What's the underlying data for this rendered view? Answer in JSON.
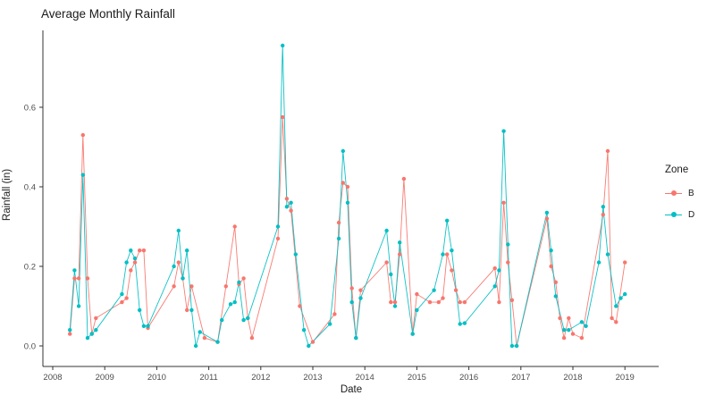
{
  "title": "Average Monthly Rainfall",
  "legend": {
    "title": "Zone",
    "entries": [
      {
        "label": "B",
        "color": "#F8766D"
      },
      {
        "label": "D",
        "color": "#00BFC4"
      }
    ]
  },
  "chart_data": {
    "type": "line",
    "title": "Average Monthly Rainfall",
    "xlabel": "Date",
    "ylabel": "Rainfall (in)",
    "xlim": [
      2007.81,
      2019.65
    ],
    "ylim": [
      -0.05,
      0.79
    ],
    "grid": false,
    "legend_position": "right",
    "x_ticks": [
      "2008",
      "2009",
      "2010",
      "2011",
      "2012",
      "2013",
      "2014",
      "2015",
      "2016",
      "2017",
      "2018",
      "2019"
    ],
    "y_ticks": [
      "0.0",
      "0.2",
      "0.4",
      "0.6"
    ],
    "series": [
      {
        "name": "B",
        "color": "#F8766D",
        "points": [
          [
            2008.33,
            0.03
          ],
          [
            2008.42,
            0.17
          ],
          [
            2008.5,
            0.17
          ],
          [
            2008.58,
            0.53
          ],
          [
            2008.67,
            0.17
          ],
          [
            2008.75,
            0.03
          ],
          [
            2008.83,
            0.07
          ],
          [
            2009.33,
            0.11
          ],
          [
            2009.42,
            0.12
          ],
          [
            2009.5,
            0.19
          ],
          [
            2009.58,
            0.21
          ],
          [
            2009.67,
            0.24
          ],
          [
            2009.75,
            0.24
          ],
          [
            2009.83,
            0.045
          ],
          [
            2010.33,
            0.15
          ],
          [
            2010.42,
            0.21
          ],
          [
            2010.5,
            0.17
          ],
          [
            2010.58,
            0.09
          ],
          [
            2010.67,
            0.15
          ],
          [
            2010.92,
            0.02
          ],
          [
            2011.17,
            0.01
          ],
          [
            2011.33,
            0.15
          ],
          [
            2011.5,
            0.3
          ],
          [
            2011.58,
            0.155
          ],
          [
            2011.67,
            0.17
          ],
          [
            2011.75,
            0.07
          ],
          [
            2011.83,
            0.02
          ],
          [
            2012.33,
            0.27
          ],
          [
            2012.42,
            0.575
          ],
          [
            2012.5,
            0.37
          ],
          [
            2012.58,
            0.34
          ],
          [
            2012.75,
            0.1
          ],
          [
            2013.0,
            0.01
          ],
          [
            2013.42,
            0.08
          ],
          [
            2013.5,
            0.31
          ],
          [
            2013.58,
            0.41
          ],
          [
            2013.67,
            0.4
          ],
          [
            2013.75,
            0.145
          ],
          [
            2013.83,
            0.02
          ],
          [
            2013.92,
            0.14
          ],
          [
            2014.42,
            0.21
          ],
          [
            2014.5,
            0.11
          ],
          [
            2014.58,
            0.11
          ],
          [
            2014.67,
            0.23
          ],
          [
            2014.75,
            0.42
          ],
          [
            2014.92,
            0.03
          ],
          [
            2015.0,
            0.13
          ],
          [
            2015.25,
            0.11
          ],
          [
            2015.42,
            0.11
          ],
          [
            2015.5,
            0.12
          ],
          [
            2015.58,
            0.23
          ],
          [
            2015.67,
            0.19
          ],
          [
            2015.75,
            0.14
          ],
          [
            2015.83,
            0.11
          ],
          [
            2015.92,
            0.11
          ],
          [
            2016.5,
            0.195
          ],
          [
            2016.58,
            0.11
          ],
          [
            2016.67,
            0.36
          ],
          [
            2016.75,
            0.21
          ],
          [
            2016.83,
            0.115
          ],
          [
            2016.92,
            0.0
          ],
          [
            2017.5,
            0.32
          ],
          [
            2017.58,
            0.2
          ],
          [
            2017.67,
            0.16
          ],
          [
            2017.75,
            0.07
          ],
          [
            2017.83,
            0.02
          ],
          [
            2017.92,
            0.07
          ],
          [
            2018.0,
            0.03
          ],
          [
            2018.17,
            0.02
          ],
          [
            2018.58,
            0.33
          ],
          [
            2018.67,
            0.49
          ],
          [
            2018.75,
            0.07
          ],
          [
            2018.83,
            0.06
          ],
          [
            2019.0,
            0.21
          ]
        ]
      },
      {
        "name": "D",
        "color": "#00BFC4",
        "points": [
          [
            2008.33,
            0.04
          ],
          [
            2008.42,
            0.19
          ],
          [
            2008.5,
            0.1
          ],
          [
            2008.58,
            0.43
          ],
          [
            2008.67,
            0.02
          ],
          [
            2008.75,
            0.03
          ],
          [
            2008.83,
            0.04
          ],
          [
            2009.33,
            0.13
          ],
          [
            2009.42,
            0.21
          ],
          [
            2009.5,
            0.24
          ],
          [
            2009.58,
            0.22
          ],
          [
            2009.67,
            0.09
          ],
          [
            2009.75,
            0.05
          ],
          [
            2009.83,
            0.05
          ],
          [
            2010.33,
            0.2
          ],
          [
            2010.42,
            0.29
          ],
          [
            2010.5,
            0.17
          ],
          [
            2010.58,
            0.24
          ],
          [
            2010.67,
            0.09
          ],
          [
            2010.75,
            0.0
          ],
          [
            2010.83,
            0.035
          ],
          [
            2011.17,
            0.01
          ],
          [
            2011.25,
            0.065
          ],
          [
            2011.42,
            0.105
          ],
          [
            2011.5,
            0.11
          ],
          [
            2011.58,
            0.16
          ],
          [
            2011.67,
            0.065
          ],
          [
            2011.75,
            0.07
          ],
          [
            2012.33,
            0.3
          ],
          [
            2012.42,
            0.755
          ],
          [
            2012.5,
            0.35
          ],
          [
            2012.58,
            0.36
          ],
          [
            2012.67,
            0.23
          ],
          [
            2012.83,
            0.04
          ],
          [
            2012.92,
            0.0
          ],
          [
            2013.33,
            0.055
          ],
          [
            2013.5,
            0.27
          ],
          [
            2013.58,
            0.49
          ],
          [
            2013.67,
            0.36
          ],
          [
            2013.75,
            0.11
          ],
          [
            2013.83,
            0.02
          ],
          [
            2013.92,
            0.12
          ],
          [
            2014.42,
            0.29
          ],
          [
            2014.5,
            0.18
          ],
          [
            2014.58,
            0.1
          ],
          [
            2014.67,
            0.26
          ],
          [
            2014.92,
            0.03
          ],
          [
            2015.0,
            0.09
          ],
          [
            2015.33,
            0.14
          ],
          [
            2015.5,
            0.23
          ],
          [
            2015.58,
            0.315
          ],
          [
            2015.67,
            0.24
          ],
          [
            2015.83,
            0.055
          ],
          [
            2015.92,
            0.057
          ],
          [
            2016.5,
            0.15
          ],
          [
            2016.58,
            0.19
          ],
          [
            2016.67,
            0.54
          ],
          [
            2016.75,
            0.255
          ],
          [
            2016.83,
            0.0
          ],
          [
            2016.92,
            0.0
          ],
          [
            2017.5,
            0.335
          ],
          [
            2017.58,
            0.24
          ],
          [
            2017.67,
            0.125
          ],
          [
            2017.83,
            0.04
          ],
          [
            2017.92,
            0.04
          ],
          [
            2018.17,
            0.06
          ],
          [
            2018.25,
            0.05
          ],
          [
            2018.5,
            0.21
          ],
          [
            2018.58,
            0.35
          ],
          [
            2018.67,
            0.23
          ],
          [
            2018.83,
            0.1
          ],
          [
            2018.92,
            0.12
          ],
          [
            2019.0,
            0.13
          ]
        ]
      }
    ]
  }
}
